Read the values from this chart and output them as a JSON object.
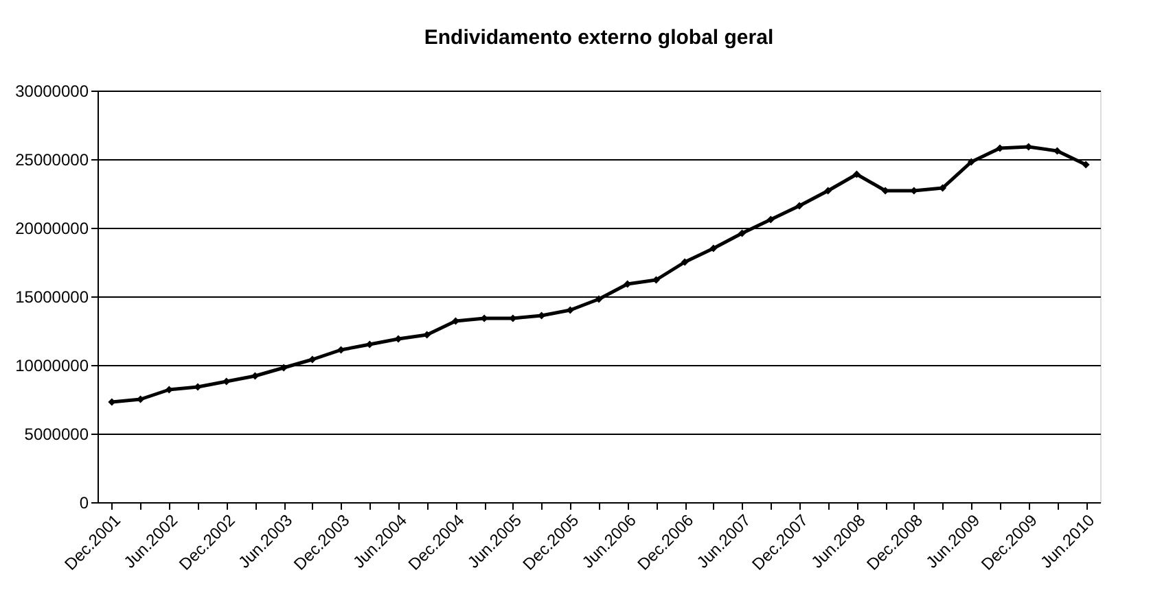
{
  "chart_data": {
    "type": "line",
    "title": "Endividamento externo global geral",
    "categories": [
      "Dec.2001",
      null,
      "Jun.2002",
      null,
      "Dec.2002",
      null,
      "Jun.2003",
      null,
      "Dec.2003",
      null,
      "Jun.2004",
      null,
      "Dec.2004",
      null,
      "Jun.2005",
      null,
      "Dec.2005",
      null,
      "Jun.2006",
      null,
      "Dec.2006",
      null,
      "Jun.2007",
      null,
      "Dec.2007",
      null,
      "Jun.2008",
      null,
      "Dec.2008",
      null,
      "Jun.2009",
      null,
      "Dec.2009",
      null,
      "Jun.2010"
    ],
    "series": [
      {
        "color": "#000000",
        "values": [
          7300000,
          7500000,
          8200000,
          8400000,
          8800000,
          9200000,
          9800000,
          10400000,
          11100000,
          11500000,
          11900000,
          12200000,
          13200000,
          13400000,
          13400000,
          13600000,
          14000000,
          14800000,
          15900000,
          16200000,
          17500000,
          18500000,
          19600000,
          20600000,
          21600000,
          22700000,
          23900000,
          22700000,
          22700000,
          22900000,
          24800000,
          25800000,
          25900000,
          25600000,
          24600000
        ]
      }
    ],
    "ylim": [
      0,
      30000000
    ],
    "yticks": [
      0,
      5000000,
      10000000,
      15000000,
      20000000,
      25000000,
      30000000
    ],
    "grid": "y",
    "marker": "diamond",
    "line_style": "solid"
  }
}
